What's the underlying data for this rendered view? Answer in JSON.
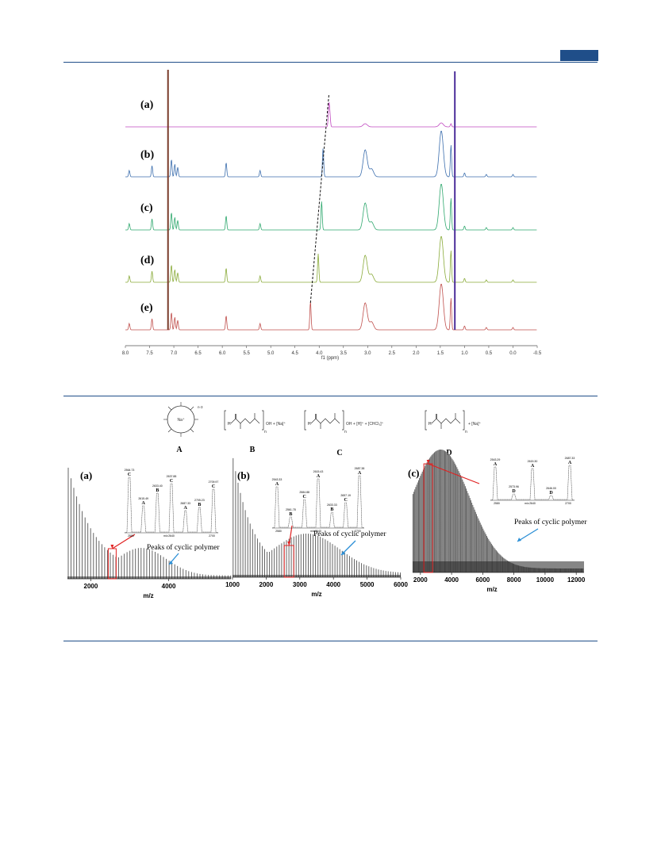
{
  "header": {
    "accent": "#1f4e89"
  },
  "nmr_figure": {
    "panel_labels": [
      "(a)",
      "(b)",
      "(c)",
      "(d)",
      "(e)"
    ],
    "trace_colors": [
      "#c048c0",
      "#3d6fae",
      "#2fa86e",
      "#8aab3a",
      "#c0504d"
    ],
    "x_tick_labels": [
      "8.0",
      "7.5",
      "7.0",
      "6.5",
      "6.0",
      "5.5",
      "5.0",
      "4.5",
      "4.0",
      "3.5",
      "3.0",
      "2.5",
      "2.0",
      "1.5",
      "1.0",
      "0.5",
      "0.0",
      "-0.5"
    ],
    "x_axis_label": "f1 (ppm)",
    "x_range": [
      8.0,
      -0.5
    ]
  },
  "maldi_figure": {
    "structure_labels": [
      "A",
      "B",
      "C",
      "D"
    ],
    "structure_text": {
      "A_ion": "Na⁺",
      "A_sub": "n-3",
      "B_ion": "OH + [Na]⁺",
      "B_sub": "n",
      "C_ion": "OH + [H]⁺ + [CHCl₃]⁺",
      "C_sub": "n",
      "D_ion": "+ [Na]⁺",
      "D_sub": "n",
      "H": "H"
    },
    "panels": [
      {
        "label": "(a)",
        "x_range": [
          1400,
          5600
        ],
        "x_ticks": [
          "2000",
          "4000"
        ],
        "xlabel": "m/z",
        "annotation": "Peaks of cyclic polymer",
        "inset_peaks": [
          {
            "letter": "C",
            "value": "2564.73"
          },
          {
            "letter": "A",
            "value": "2615.49"
          },
          {
            "letter": "B",
            "value": "2633.40"
          },
          {
            "letter": "C",
            "value": "2637.88"
          },
          {
            "letter": "A",
            "value": "2687.33"
          },
          {
            "letter": "B",
            "value": "2705.23"
          },
          {
            "letter": "C",
            "value": "2709.97"
          }
        ],
        "inset_ticks": [
          "2580",
          "2640",
          "2700"
        ],
        "inset_xlabel": "m/z"
      },
      {
        "label": "(b)",
        "x_range": [
          1000,
          6000
        ],
        "x_ticks": [
          "1000",
          "2000",
          "3000",
          "4000",
          "5000",
          "6000"
        ],
        "xlabel": "m/z",
        "annotation": "Peaks of cyclic polymer",
        "inset_peaks": [
          {
            "letter": "A",
            "value": "2543.33"
          },
          {
            "letter": "B",
            "value": "2561.78"
          },
          {
            "letter": "C",
            "value": "2584.88"
          },
          {
            "letter": "A",
            "value": "2615.43"
          },
          {
            "letter": "B",
            "value": "2633.33"
          },
          {
            "letter": "C",
            "value": "2657.19"
          },
          {
            "letter": "A",
            "value": "2687.38"
          }
        ],
        "inset_ticks": [
          "2580",
          "2640",
          "2700"
        ],
        "inset_xlabel": "m/z"
      },
      {
        "label": "(c)",
        "x_range": [
          1500,
          12500
        ],
        "x_ticks": [
          "2000",
          "4000",
          "6000",
          "8000",
          "10000",
          "12000"
        ],
        "xlabel": "m/z",
        "annotation": "Peaks of cyclic polymer",
        "inset_peaks": [
          {
            "letter": "A",
            "value": "2543.29"
          },
          {
            "letter": "D",
            "value": "2573.96"
          },
          {
            "letter": "A",
            "value": "2615.30"
          },
          {
            "letter": "D",
            "value": "2646.00"
          },
          {
            "letter": "A",
            "value": "2687.33"
          }
        ],
        "inset_ticks": [
          "2580",
          "2640",
          "2700"
        ],
        "inset_xlabel": "m/z"
      }
    ]
  }
}
